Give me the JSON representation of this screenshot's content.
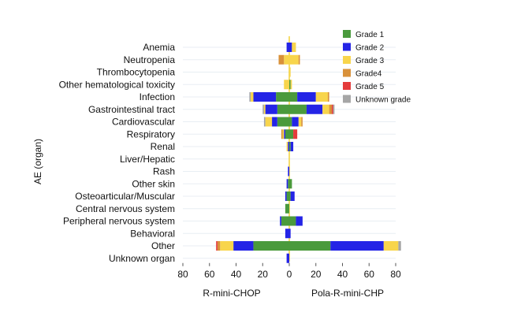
{
  "chart_data": {
    "type": "bar",
    "orientation": "horizontal",
    "stacked": true,
    "diverging": true,
    "ylabel": "AE (organ)",
    "left_group_label": "R-mini-CHOP",
    "right_group_label": "Pola-R-mini-CHP",
    "x_ticks": [
      "80",
      "60",
      "40",
      "20",
      "0",
      "20",
      "40",
      "60",
      "80"
    ],
    "xlim": [
      -80,
      80
    ],
    "grid": true,
    "legend_position": "top-right",
    "categories": [
      "Anemia",
      "Neutropenia",
      "Thrombocytopenia",
      "Other hematological toxicity",
      "Infection",
      "Gastrointestinal tract",
      "Cardiovascular",
      "Respiratory",
      "Renal",
      "Liver/Hepatic",
      "Rash",
      "Other skin",
      "Osteoarticular/Muscular",
      "Central nervous system",
      "Peripheral nervous system",
      "Behavioral",
      "Other",
      "Unknown organ"
    ],
    "series": [
      {
        "name": "Grade 1",
        "color": "#4a9a3c",
        "left": [
          0,
          0,
          0,
          0,
          10,
          9,
          9,
          3,
          0,
          0,
          0,
          1,
          2,
          3,
          6,
          0,
          27,
          0
        ],
        "right": [
          0,
          0,
          0,
          1,
          6,
          13,
          2,
          3,
          1,
          0,
          0,
          2,
          1,
          0,
          5,
          0,
          31,
          0
        ]
      },
      {
        "name": "Grade 2",
        "color": "#2424e6",
        "left": [
          2,
          0,
          0,
          0,
          17,
          9,
          4,
          1,
          1,
          0,
          1,
          1,
          1,
          0,
          1,
          3,
          15,
          2
        ],
        "right": [
          2,
          0,
          0,
          0,
          14,
          12,
          5,
          0,
          2,
          0,
          0,
          0,
          3,
          0,
          5,
          1,
          40,
          0
        ]
      },
      {
        "name": "Grade 3",
        "color": "#f8d54c",
        "left": [
          0,
          4,
          0,
          4,
          2,
          1,
          5,
          1,
          1,
          0,
          0,
          0,
          0,
          0,
          0,
          0,
          10,
          0
        ],
        "right": [
          3,
          7,
          1,
          1,
          9,
          5,
          2,
          0,
          0,
          0,
          0,
          0,
          0,
          0,
          0,
          0,
          11,
          0
        ]
      },
      {
        "name": "Grade4",
        "color": "#d9913a",
        "left": [
          0,
          4,
          0,
          0,
          0,
          0,
          0,
          1,
          0,
          0,
          0,
          0,
          0,
          0,
          0,
          0,
          2,
          0
        ],
        "right": [
          0,
          1,
          0,
          0,
          1,
          2,
          1,
          0,
          0,
          0,
          0,
          0,
          0,
          0,
          0,
          0,
          0,
          0
        ]
      },
      {
        "name": "Grade 5",
        "color": "#e43b3b",
        "left": [
          0,
          0,
          0,
          0,
          0,
          0,
          0,
          0,
          0,
          0,
          0,
          0,
          0,
          0,
          0,
          0,
          1,
          0
        ],
        "right": [
          0,
          0,
          0,
          0,
          0,
          1,
          0,
          3,
          0,
          0,
          0,
          0,
          0,
          0,
          0,
          0,
          0,
          0
        ]
      },
      {
        "name": "Unknown grade",
        "color": "#a6a6a6",
        "left": [
          0,
          0,
          0,
          0,
          1,
          1,
          1,
          0,
          0,
          0,
          0,
          0,
          0,
          0,
          0,
          0,
          0,
          0
        ],
        "right": [
          0,
          0,
          0,
          0,
          0,
          1,
          0,
          0,
          0,
          0,
          0,
          0,
          0,
          0,
          0,
          0,
          2,
          0
        ]
      }
    ]
  }
}
